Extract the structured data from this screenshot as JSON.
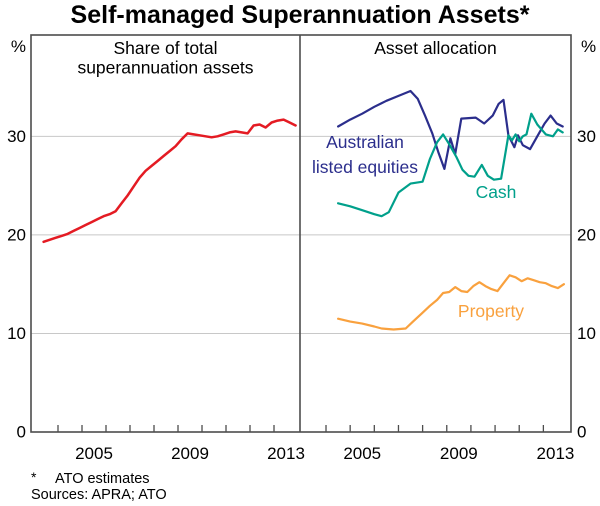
{
  "page": {
    "title": "Self-managed Superannuation Assets*",
    "footnote_marker": "*",
    "footnote": "ATO estimates",
    "sources": "Sources: APRA; ATO"
  },
  "chart_data": {
    "type": "line",
    "title": "Self-managed Superannuation Assets*",
    "grid_on": true,
    "colors": {
      "share": "#e41b23",
      "equities": "#2b2e8c",
      "cash": "#00a08b",
      "property": "#f9a13e",
      "frame": "#4d4d4d",
      "gridline": "#c8c8c8"
    },
    "y_axis": {
      "unit": "%",
      "ticks": [
        0,
        10,
        20,
        30
      ],
      "ylim": [
        0,
        40.3
      ],
      "gridlines": [
        10,
        20,
        30
      ]
    },
    "x_axis": {
      "tick_year_start": 2004,
      "tick_year_end": 2013,
      "labels": [
        "2005",
        "2009",
        "2013"
      ],
      "label_years": [
        2005.5,
        2009.5,
        2013.5
      ]
    },
    "panels": [
      {
        "title_lines": [
          "Share of total",
          "superannuation assets"
        ],
        "x_range_years": [
          2002.875,
          2014.083
        ],
        "series": [
          {
            "name": "Share of total superannuation assets",
            "color_key": "share",
            "label_lines": [],
            "points": [
              [
                2003.4,
                19.3
              ],
              [
                2003.65,
                19.5
              ],
              [
                2003.9,
                19.7
              ],
              [
                2004.15,
                19.9
              ],
              [
                2004.4,
                20.1
              ],
              [
                2004.65,
                20.4
              ],
              [
                2004.9,
                20.7
              ],
              [
                2005.15,
                21.0
              ],
              [
                2005.4,
                21.3
              ],
              [
                2005.65,
                21.6
              ],
              [
                2005.9,
                21.9
              ],
              [
                2006.15,
                22.1
              ],
              [
                2006.4,
                22.4
              ],
              [
                2006.65,
                23.2
              ],
              [
                2006.9,
                24.0
              ],
              [
                2007.15,
                24.9
              ],
              [
                2007.4,
                25.8
              ],
              [
                2007.65,
                26.5
              ],
              [
                2007.9,
                27.0
              ],
              [
                2008.15,
                27.5
              ],
              [
                2008.4,
                28.0
              ],
              [
                2008.65,
                28.5
              ],
              [
                2008.9,
                29.0
              ],
              [
                2009.15,
                29.7
              ],
              [
                2009.4,
                30.3
              ],
              [
                2009.65,
                30.2
              ],
              [
                2009.9,
                30.1
              ],
              [
                2010.15,
                30.0
              ],
              [
                2010.4,
                29.9
              ],
              [
                2010.65,
                30.0
              ],
              [
                2010.9,
                30.2
              ],
              [
                2011.15,
                30.4
              ],
              [
                2011.4,
                30.5
              ],
              [
                2011.65,
                30.4
              ],
              [
                2011.9,
                30.3
              ],
              [
                2012.15,
                31.1
              ],
              [
                2012.4,
                31.2
              ],
              [
                2012.65,
                30.9
              ],
              [
                2012.9,
                31.4
              ],
              [
                2013.15,
                31.6
              ],
              [
                2013.4,
                31.7
              ],
              [
                2013.65,
                31.4
              ],
              [
                2013.9,
                31.1
              ]
            ]
          }
        ]
      },
      {
        "title_lines": [
          "Asset allocation"
        ],
        "x_range_years": [
          2002.923,
          2014.144
        ],
        "series": [
          {
            "name": "Australian listed equities",
            "color_key": "equities",
            "label_lines": [
              "Australian",
              "listed equities"
            ],
            "points": [
              [
                2004.5,
                31.0
              ],
              [
                2005,
                31.7
              ],
              [
                2005.5,
                32.3
              ],
              [
                2006,
                33.0
              ],
              [
                2006.5,
                33.6
              ],
              [
                2007,
                34.1
              ],
              [
                2007.5,
                34.6
              ],
              [
                2007.8,
                33.8
              ],
              [
                2008.1,
                32.1
              ],
              [
                2008.4,
                30.3
              ],
              [
                2008.65,
                28.4
              ],
              [
                2008.9,
                26.7
              ],
              [
                2009.15,
                29.8
              ],
              [
                2009.35,
                28.2
              ],
              [
                2009.6,
                31.8
              ],
              [
                2010.2,
                31.9
              ],
              [
                2010.55,
                31.3
              ],
              [
                2010.9,
                32.1
              ],
              [
                2011.15,
                33.3
              ],
              [
                2011.35,
                33.7
              ],
              [
                2011.55,
                30.1
              ],
              [
                2011.8,
                28.9
              ],
              [
                2011.95,
                30.1
              ],
              [
                2012.15,
                29.1
              ],
              [
                2012.45,
                28.7
              ],
              [
                2012.75,
                30.0
              ],
              [
                2013.05,
                31.3
              ],
              [
                2013.3,
                32.1
              ],
              [
                2013.55,
                31.3
              ],
              [
                2013.8,
                31.0
              ]
            ]
          },
          {
            "name": "Cash",
            "color_key": "cash",
            "label_lines": [
              "Cash"
            ],
            "points": [
              [
                2004.5,
                23.2
              ],
              [
                2005,
                22.9
              ],
              [
                2005.5,
                22.5
              ],
              [
                2006,
                22.1
              ],
              [
                2006.3,
                21.9
              ],
              [
                2006.6,
                22.3
              ],
              [
                2007,
                24.3
              ],
              [
                2007.5,
                25.2
              ],
              [
                2008,
                25.4
              ],
              [
                2008.3,
                27.7
              ],
              [
                2008.6,
                29.4
              ],
              [
                2008.85,
                30.2
              ],
              [
                2009.1,
                29.2
              ],
              [
                2009.4,
                27.9
              ],
              [
                2009.65,
                26.6
              ],
              [
                2009.9,
                26.0
              ],
              [
                2010.15,
                25.9
              ],
              [
                2010.45,
                27.1
              ],
              [
                2010.7,
                26.0
              ],
              [
                2010.95,
                25.6
              ],
              [
                2011.25,
                25.7
              ],
              [
                2011.55,
                30.1
              ],
              [
                2011.7,
                29.6
              ],
              [
                2011.85,
                30.2
              ],
              [
                2012.0,
                29.5
              ],
              [
                2012.15,
                30.0
              ],
              [
                2012.3,
                30.2
              ],
              [
                2012.5,
                32.3
              ],
              [
                2012.75,
                31.2
              ],
              [
                2013.1,
                30.2
              ],
              [
                2013.4,
                30.0
              ],
              [
                2013.6,
                30.7
              ],
              [
                2013.8,
                30.4
              ]
            ]
          },
          {
            "name": "Property",
            "color_key": "property",
            "label_lines": [
              "Property"
            ],
            "points": [
              [
                2004.5,
                11.5
              ],
              [
                2005,
                11.2
              ],
              [
                2005.5,
                11.0
              ],
              [
                2006,
                10.7
              ],
              [
                2006.3,
                10.5
              ],
              [
                2006.8,
                10.4
              ],
              [
                2007.3,
                10.5
              ],
              [
                2007.6,
                11.2
              ],
              [
                2008,
                12.1
              ],
              [
                2008.3,
                12.8
              ],
              [
                2008.6,
                13.4
              ],
              [
                2008.85,
                14.1
              ],
              [
                2009.1,
                14.2
              ],
              [
                2009.35,
                14.7
              ],
              [
                2009.6,
                14.3
              ],
              [
                2009.85,
                14.2
              ],
              [
                2010.1,
                14.8
              ],
              [
                2010.35,
                15.2
              ],
              [
                2010.6,
                14.8
              ],
              [
                2010.85,
                14.5
              ],
              [
                2011.1,
                14.3
              ],
              [
                2011.35,
                15.1
              ],
              [
                2011.6,
                15.9
              ],
              [
                2011.85,
                15.7
              ],
              [
                2012.1,
                15.3
              ],
              [
                2012.35,
                15.6
              ],
              [
                2012.6,
                15.4
              ],
              [
                2012.85,
                15.2
              ],
              [
                2013.1,
                15.1
              ],
              [
                2013.35,
                14.8
              ],
              [
                2013.6,
                14.6
              ],
              [
                2013.85,
                15.0
              ]
            ]
          }
        ]
      }
    ]
  }
}
